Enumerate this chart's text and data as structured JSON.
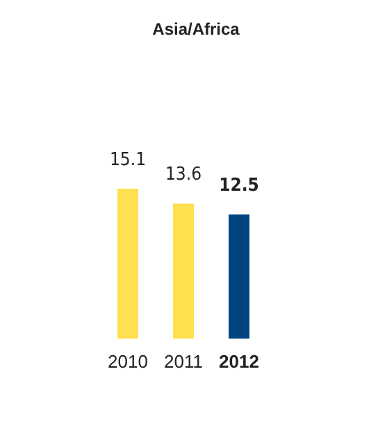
{
  "chart_data": {
    "type": "bar",
    "title": "Asia/Africa",
    "categories": [
      "2010",
      "2011",
      "2012"
    ],
    "values": [
      15.1,
      13.6,
      12.5
    ],
    "colors": [
      "#ffe04f",
      "#ffe04f",
      "#00457f"
    ],
    "data_labels": true
  }
}
